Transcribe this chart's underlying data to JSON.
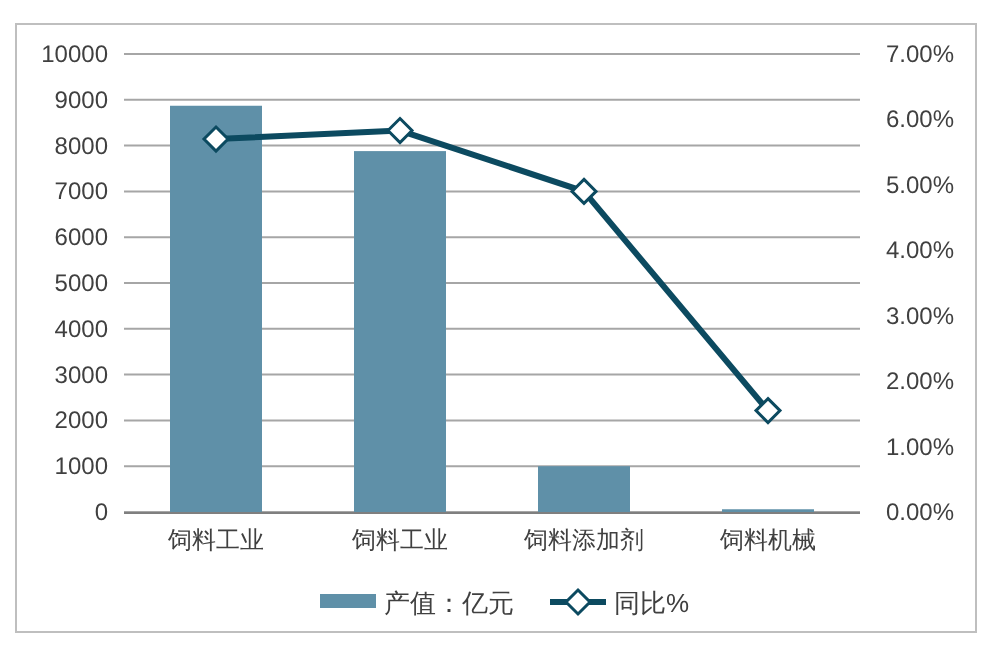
{
  "chart_data": {
    "type": "bar",
    "categories": [
      "饲料工业",
      "饲料工业",
      "饲料添加剂",
      "饲料机械"
    ],
    "series": [
      {
        "name": "产值：亿元",
        "color": "#5f90a8",
        "values": [
          8870,
          7880,
          1000,
          60
        ]
      },
      {
        "name": "同比%",
        "type": "line",
        "axis": "y2",
        "color": "#0c4a60",
        "marker": "diamond",
        "values": [
          5.7,
          5.83,
          4.9,
          1.55
        ]
      }
    ],
    "ylim": [
      0,
      10000
    ],
    "yticks": [
      0,
      1000,
      2000,
      3000,
      4000,
      5000,
      6000,
      7000,
      8000,
      9000,
      10000
    ],
    "y2lim": [
      0,
      7
    ],
    "y2ticks": [
      {
        "value": 0,
        "label": "0.00%"
      },
      {
        "value": 1,
        "label": "1.00%"
      },
      {
        "value": 2,
        "label": "2.00%"
      },
      {
        "value": 3,
        "label": "3.00%"
      },
      {
        "value": 4,
        "label": "4.00%"
      },
      {
        "value": 5,
        "label": "5.00%"
      },
      {
        "value": 6,
        "label": "6.00%"
      },
      {
        "value": 7,
        "label": "7.00%"
      }
    ],
    "grid": "y",
    "legend": "bottom"
  }
}
